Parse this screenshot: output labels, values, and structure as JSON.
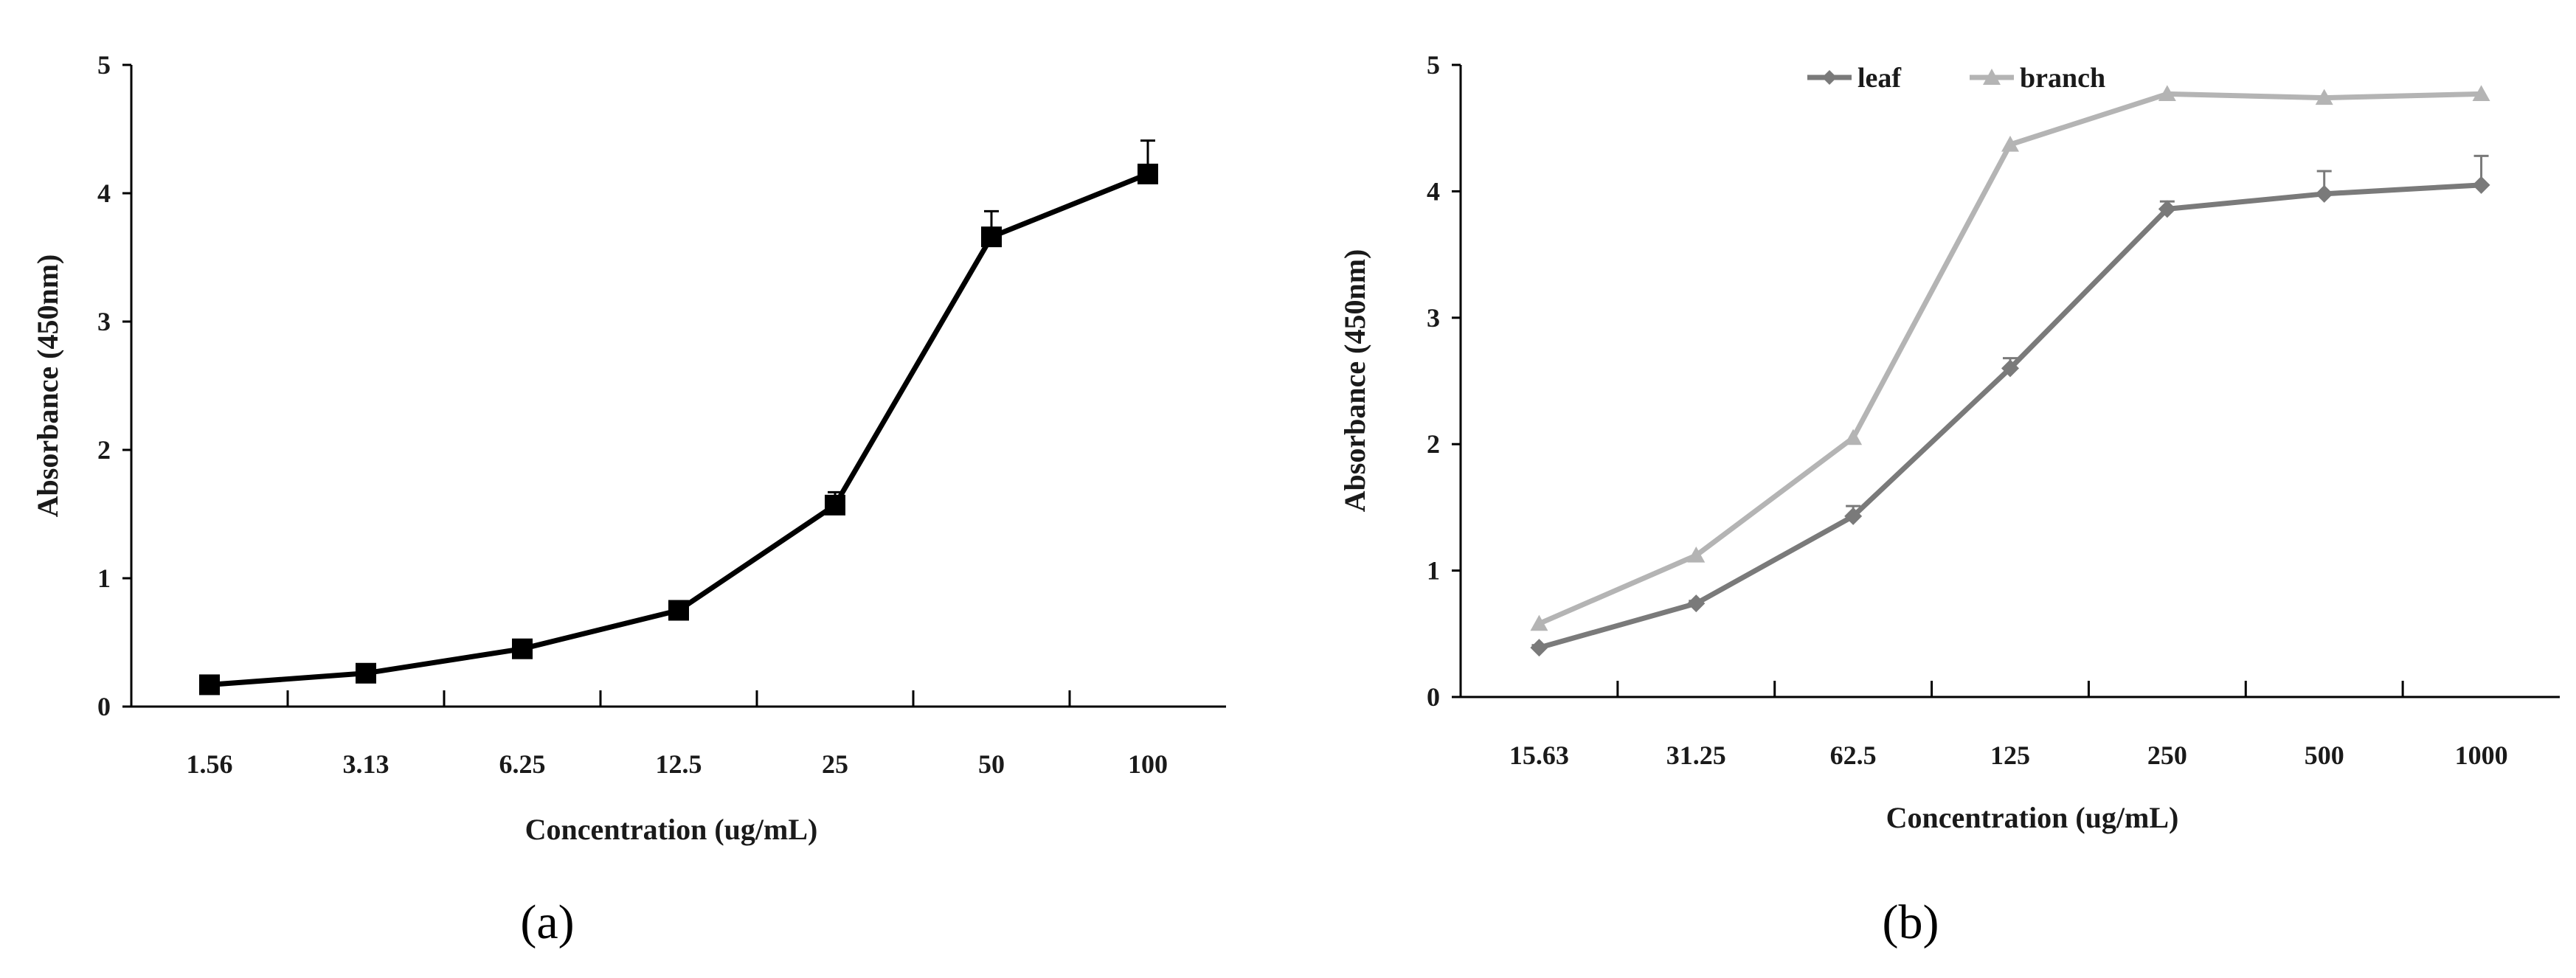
{
  "chart_data": [
    {
      "type": "line",
      "panel_label": "(a)",
      "title": "",
      "xlabel": "Concentration (ug/mL)",
      "ylabel": "Absorbance (450nm)",
      "categories": [
        "1.56",
        "3.13",
        "6.25",
        "12.5",
        "25",
        "50",
        "100"
      ],
      "ylim": [
        0,
        5
      ],
      "yticks": [
        "0",
        "1",
        "2",
        "3",
        "4",
        "5"
      ],
      "grid": false,
      "legend": null,
      "series": [
        {
          "name": "",
          "values": [
            0.17,
            0.26,
            0.45,
            0.75,
            1.57,
            3.66,
            4.15
          ],
          "errors": [
            0.02,
            0.02,
            0.03,
            0.04,
            0.1,
            0.2,
            0.26
          ],
          "color": "#000000",
          "marker": "square"
        }
      ]
    },
    {
      "type": "line",
      "panel_label": "(b)",
      "title": "",
      "xlabel": "Concentration (ug/mL)",
      "ylabel": "Absorbance (450nm)",
      "categories": [
        "15.63",
        "31.25",
        "62.5",
        "125",
        "250",
        "500",
        "1000"
      ],
      "ylim": [
        0,
        5
      ],
      "yticks": [
        "0",
        "1",
        "2",
        "3",
        "4",
        "5"
      ],
      "grid": false,
      "legend": "top-left",
      "series": [
        {
          "name": "leaf",
          "values": [
            0.39,
            0.74,
            1.43,
            2.6,
            3.86,
            3.98,
            4.05
          ],
          "errors": [
            0.02,
            0.02,
            0.08,
            0.08,
            0.06,
            0.18,
            0.23
          ],
          "color": "#7a7a7a",
          "marker": "diamond"
        },
        {
          "name": "branch",
          "values": [
            0.58,
            1.12,
            2.05,
            4.37,
            4.77,
            4.74,
            4.77
          ],
          "errors": [
            0.0,
            0.0,
            0.0,
            0.0,
            0.0,
            0.0,
            0.0
          ],
          "color": "#b4b4b4",
          "marker": "triangle"
        }
      ]
    }
  ]
}
